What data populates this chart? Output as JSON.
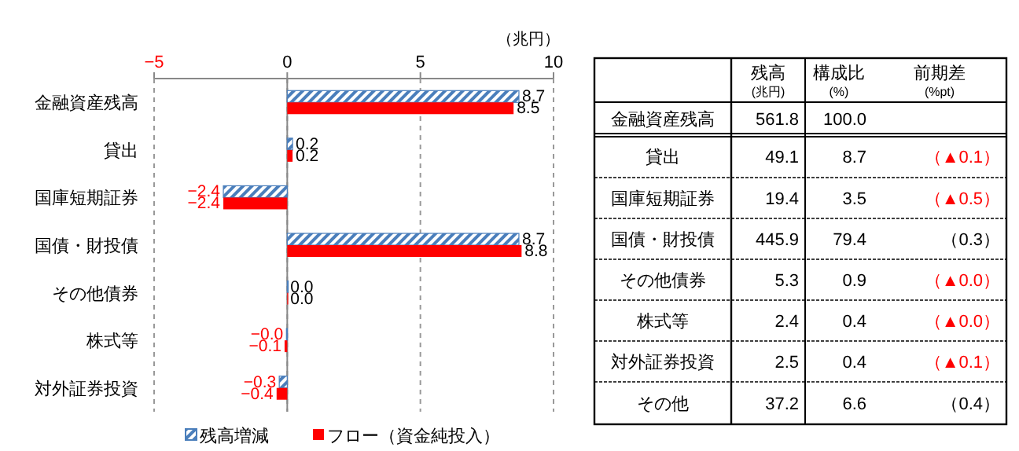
{
  "chart_data": [
    {
      "type": "bar",
      "orientation": "horizontal",
      "xlabel": "（兆円）",
      "categories": [
        "金融資産残高",
        "貸出",
        "国庫短期証券",
        "国債・財投債",
        "その他債券",
        "株式等",
        "対外証券投資"
      ],
      "series": [
        {
          "name": "残高増減",
          "color": "#4a7ebb",
          "values": [
            8.7,
            0.2,
            -2.4,
            8.7,
            0.0,
            -0.03,
            -0.3
          ],
          "value_labels": [
            "8.7",
            "0.2",
            "−2.4",
            "8.7",
            "0.0",
            "−0.0",
            "−0.3"
          ]
        },
        {
          "name": "フロー（資金純投入）",
          "color": "#ff0000",
          "values": [
            8.5,
            0.2,
            -2.4,
            8.8,
            0.0,
            -0.1,
            -0.4
          ],
          "value_labels": [
            "8.5",
            "0.2",
            "−2.4",
            "8.8",
            "0.0",
            "−0.1",
            "−0.4"
          ]
        }
      ],
      "xlim": [
        -5,
        10
      ],
      "xticks": [
        -5,
        0,
        5,
        10
      ],
      "grid": "x",
      "legend": "bottom"
    },
    {
      "type": "other",
      "categories": [
        "残高",
        "構成比",
        "前期差"
      ],
      "y_categories": [
        null,
        "金融資産残高",
        "貸出",
        "国庫短期証券",
        "国債・財投債",
        "その他債券",
        "株式等",
        "対外証券投資",
        "その他"
      ],
      "cell_labels": [
        [
          "(兆円)",
          "(%)",
          "(%pt)"
        ],
        [
          "561.8",
          "100.0",
          null
        ],
        [
          "49.1",
          "8.7",
          "（▲0.1）"
        ],
        [
          "19.4",
          "3.5",
          "（▲0.5）"
        ],
        [
          "445.9",
          "79.4",
          "（0.3）"
        ],
        [
          "5.3",
          "0.9",
          "（▲0.0）"
        ],
        [
          "2.4",
          "0.4",
          "（▲0.0）"
        ],
        [
          "2.5",
          "0.4",
          "（▲0.1）"
        ],
        [
          "37.2",
          "6.6",
          "（0.4）"
        ]
      ],
      "colors": [
        [
          "#000000",
          "#000000",
          "#000000"
        ],
        [
          "#000000",
          "#000000",
          null
        ],
        [
          "#000000",
          "#000000",
          "#ff0000"
        ],
        [
          "#000000",
          "#000000",
          "#ff0000"
        ],
        [
          "#000000",
          "#000000",
          "#000000"
        ],
        [
          "#000000",
          "#000000",
          "#ff0000"
        ],
        [
          "#000000",
          "#000000",
          "#ff0000"
        ],
        [
          "#000000",
          "#000000",
          "#ff0000"
        ],
        [
          "#000000",
          "#000000",
          "#000000"
        ]
      ]
    }
  ]
}
